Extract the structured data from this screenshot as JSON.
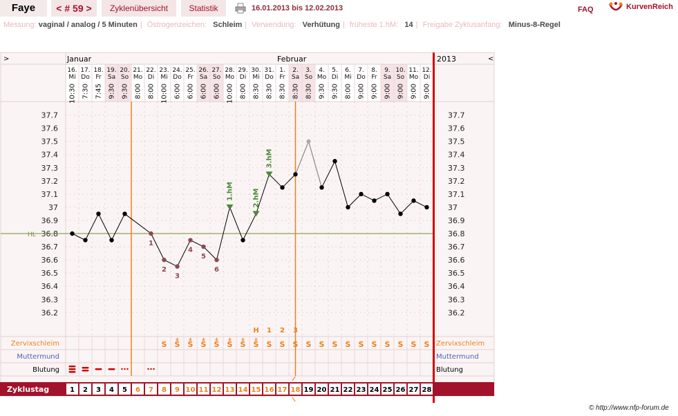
{
  "header": {
    "name": "Faye",
    "cycle": "< # 59 >",
    "tab_overview": "Zyklenübersicht",
    "tab_stats": "Statistik",
    "date_range": "16.01.2013 bis 12.02.2013",
    "faq": "FAQ",
    "logo": "KurvenReich"
  },
  "info": {
    "messung_label": "Messung:",
    "messung_value": "vaginal / analog / 5 Minuten",
    "oestrogen_label": "Östrogenzeichen:",
    "oestrogen_value": "Schleim",
    "verwendung_label": "Verwendung:",
    "verwendung_value": "Verhütung",
    "hm_label": "früheste 1.hM:",
    "hm_value": "14",
    "freigabe_label": "Freigabe Zyklusanfang:",
    "freigabe_value": "Minus-8-Regel"
  },
  "chart_data": {
    "type": "line",
    "title": "",
    "months": [
      {
        "label": "Januar",
        "start_day": 1
      },
      {
        "label": "Februar",
        "start_day": 17
      }
    ],
    "year": "2013",
    "nav_left": ">",
    "nav_right": "<",
    "days": [
      {
        "date": "16.",
        "wd": "Mi",
        "time": "10:30",
        "weekend": false
      },
      {
        "date": "17.",
        "wd": "Do",
        "time": "7:30",
        "weekend": false
      },
      {
        "date": "18.",
        "wd": "Fr",
        "time": "7:45",
        "weekend": false
      },
      {
        "date": "19.",
        "wd": "Sa",
        "time": "9:30",
        "weekend": true
      },
      {
        "date": "20.",
        "wd": "So",
        "time": "9:30",
        "weekend": true
      },
      {
        "date": "21.",
        "wd": "Mo",
        "time": "8:00",
        "weekend": false
      },
      {
        "date": "22.",
        "wd": "Di",
        "time": "8:00",
        "weekend": false
      },
      {
        "date": "23.",
        "wd": "Mi",
        "time": "10:00",
        "weekend": false
      },
      {
        "date": "24.",
        "wd": "Do",
        "time": "6:00",
        "weekend": false
      },
      {
        "date": "25.",
        "wd": "Fr",
        "time": "6:00",
        "weekend": false
      },
      {
        "date": "26.",
        "wd": "Sa",
        "time": "6:00",
        "weekend": true
      },
      {
        "date": "27.",
        "wd": "So",
        "time": "6:00",
        "weekend": true
      },
      {
        "date": "28.",
        "wd": "Mo",
        "time": "10:00",
        "weekend": false
      },
      {
        "date": "29.",
        "wd": "Di",
        "time": "8:00",
        "weekend": false
      },
      {
        "date": "30.",
        "wd": "Mi",
        "time": "8:30",
        "weekend": false
      },
      {
        "date": "31.",
        "wd": "Do",
        "time": "8:30",
        "weekend": false
      },
      {
        "date": "1.",
        "wd": "Fr",
        "time": "8:30",
        "weekend": false
      },
      {
        "date": "2.",
        "wd": "Sa",
        "time": "8:30",
        "weekend": true
      },
      {
        "date": "3.",
        "wd": "So",
        "time": "8:30",
        "weekend": true
      },
      {
        "date": "4.",
        "wd": "Mo",
        "time": "9:30",
        "weekend": false
      },
      {
        "date": "5.",
        "wd": "Di",
        "time": "9:30",
        "weekend": false
      },
      {
        "date": "6.",
        "wd": "Mi",
        "time": "8:00",
        "weekend": false
      },
      {
        "date": "7.",
        "wd": "Do",
        "time": "9:00",
        "weekend": false
      },
      {
        "date": "8.",
        "wd": "Fr",
        "time": "9:00",
        "weekend": false
      },
      {
        "date": "9.",
        "wd": "Sa",
        "time": "9:00",
        "weekend": true
      },
      {
        "date": "10.",
        "wd": "So",
        "time": "9:00",
        "weekend": true
      },
      {
        "date": "11.",
        "wd": "Mo",
        "time": "9:00",
        "weekend": false
      },
      {
        "date": "12.",
        "wd": "Di",
        "time": "9:00",
        "weekend": false
      }
    ],
    "y_ticks": [
      "37.7",
      "37.6",
      "37.5",
      "37.4",
      "37.3",
      "37.2",
      "37.1",
      "37",
      "36.9",
      "36.8",
      "36.7",
      "36.6",
      "36.5",
      "36.4",
      "36.3",
      "36.2"
    ],
    "ylim": [
      36.1,
      37.75
    ],
    "temperatures": [
      36.8,
      36.75,
      36.95,
      36.75,
      36.95,
      null,
      36.8,
      36.6,
      36.55,
      36.75,
      36.7,
      36.6,
      37.0,
      36.75,
      36.95,
      37.25,
      37.15,
      37.25,
      37.5,
      37.15,
      37.35,
      37.0,
      37.1,
      37.05,
      37.1,
      36.95,
      37.05,
      37.0
    ],
    "excluded_day": 19,
    "hl_value": 36.8,
    "hl_label": "HL",
    "low_marks": [
      {
        "day": 7,
        "label": "1"
      },
      {
        "day": 8,
        "label": "2"
      },
      {
        "day": 9,
        "label": "3"
      },
      {
        "day": 10,
        "label": "4"
      },
      {
        "day": 11,
        "label": "5"
      },
      {
        "day": 12,
        "label": "6"
      }
    ],
    "high_marks": [
      {
        "day": 13,
        "label": "1.hM"
      },
      {
        "day": 15,
        "label": "2.hM"
      },
      {
        "day": 16,
        "label": "3.hM"
      }
    ],
    "h_row": [
      {
        "day": 15,
        "label": "H"
      },
      {
        "day": 16,
        "label": "1"
      },
      {
        "day": 17,
        "label": "2"
      },
      {
        "day": 18,
        "label": "3"
      }
    ],
    "orange_lines": [
      6,
      18.5
    ],
    "cervix_label": "Zervixschleim",
    "cervix": [
      "",
      "",
      "",
      "",
      "",
      "",
      "",
      "S",
      "Ŝ",
      "Ŝ",
      "Ŝ",
      "Ŝ",
      "Ŝ",
      "Ŝ",
      "Ŝ",
      "S",
      "S",
      "S",
      "S",
      "S",
      "S",
      "S",
      "S",
      "S",
      "S",
      "S",
      "S",
      "S"
    ],
    "cervix_plus": [
      false,
      false,
      false,
      false,
      false,
      false,
      false,
      false,
      true,
      true,
      true,
      true,
      true,
      true,
      true,
      false,
      false,
      false,
      false,
      false,
      false,
      false,
      false,
      false,
      false,
      false,
      false,
      false
    ],
    "mumu_label": "Muttermund",
    "bleeding_label": "Blutung",
    "bleeding": [
      "heavy",
      "strong",
      "medium",
      "medium",
      "light",
      "",
      "light",
      "",
      "",
      "",
      "",
      "",
      "",
      "",
      "",
      "",
      "",
      "",
      "",
      "",
      "",
      "",
      "",
      "",
      "",
      "",
      "",
      ""
    ],
    "cycle_day_label": "Zyklustag",
    "cycle_days": [
      "1",
      "2",
      "3",
      "4",
      "5",
      "6",
      "7",
      "8",
      "9",
      "10",
      "11",
      "12",
      "13",
      "14",
      "15",
      "16",
      "17",
      "18",
      "19",
      "20",
      "21",
      "22",
      "23",
      "24",
      "25",
      "26",
      "27",
      "28"
    ]
  },
  "colors": {
    "accent": "#a2122a",
    "orange": "#f07f1a",
    "weekend_bg": "#f5e3e6",
    "panel_bg": "#fbf4f4",
    "hl_line": "#6f8f3a",
    "low_point": "#8b4a52",
    "high_marker": "#4b8a3a",
    "mumu_text": "#4a63b8"
  },
  "copyright": "© http://www.nfp-forum.de"
}
